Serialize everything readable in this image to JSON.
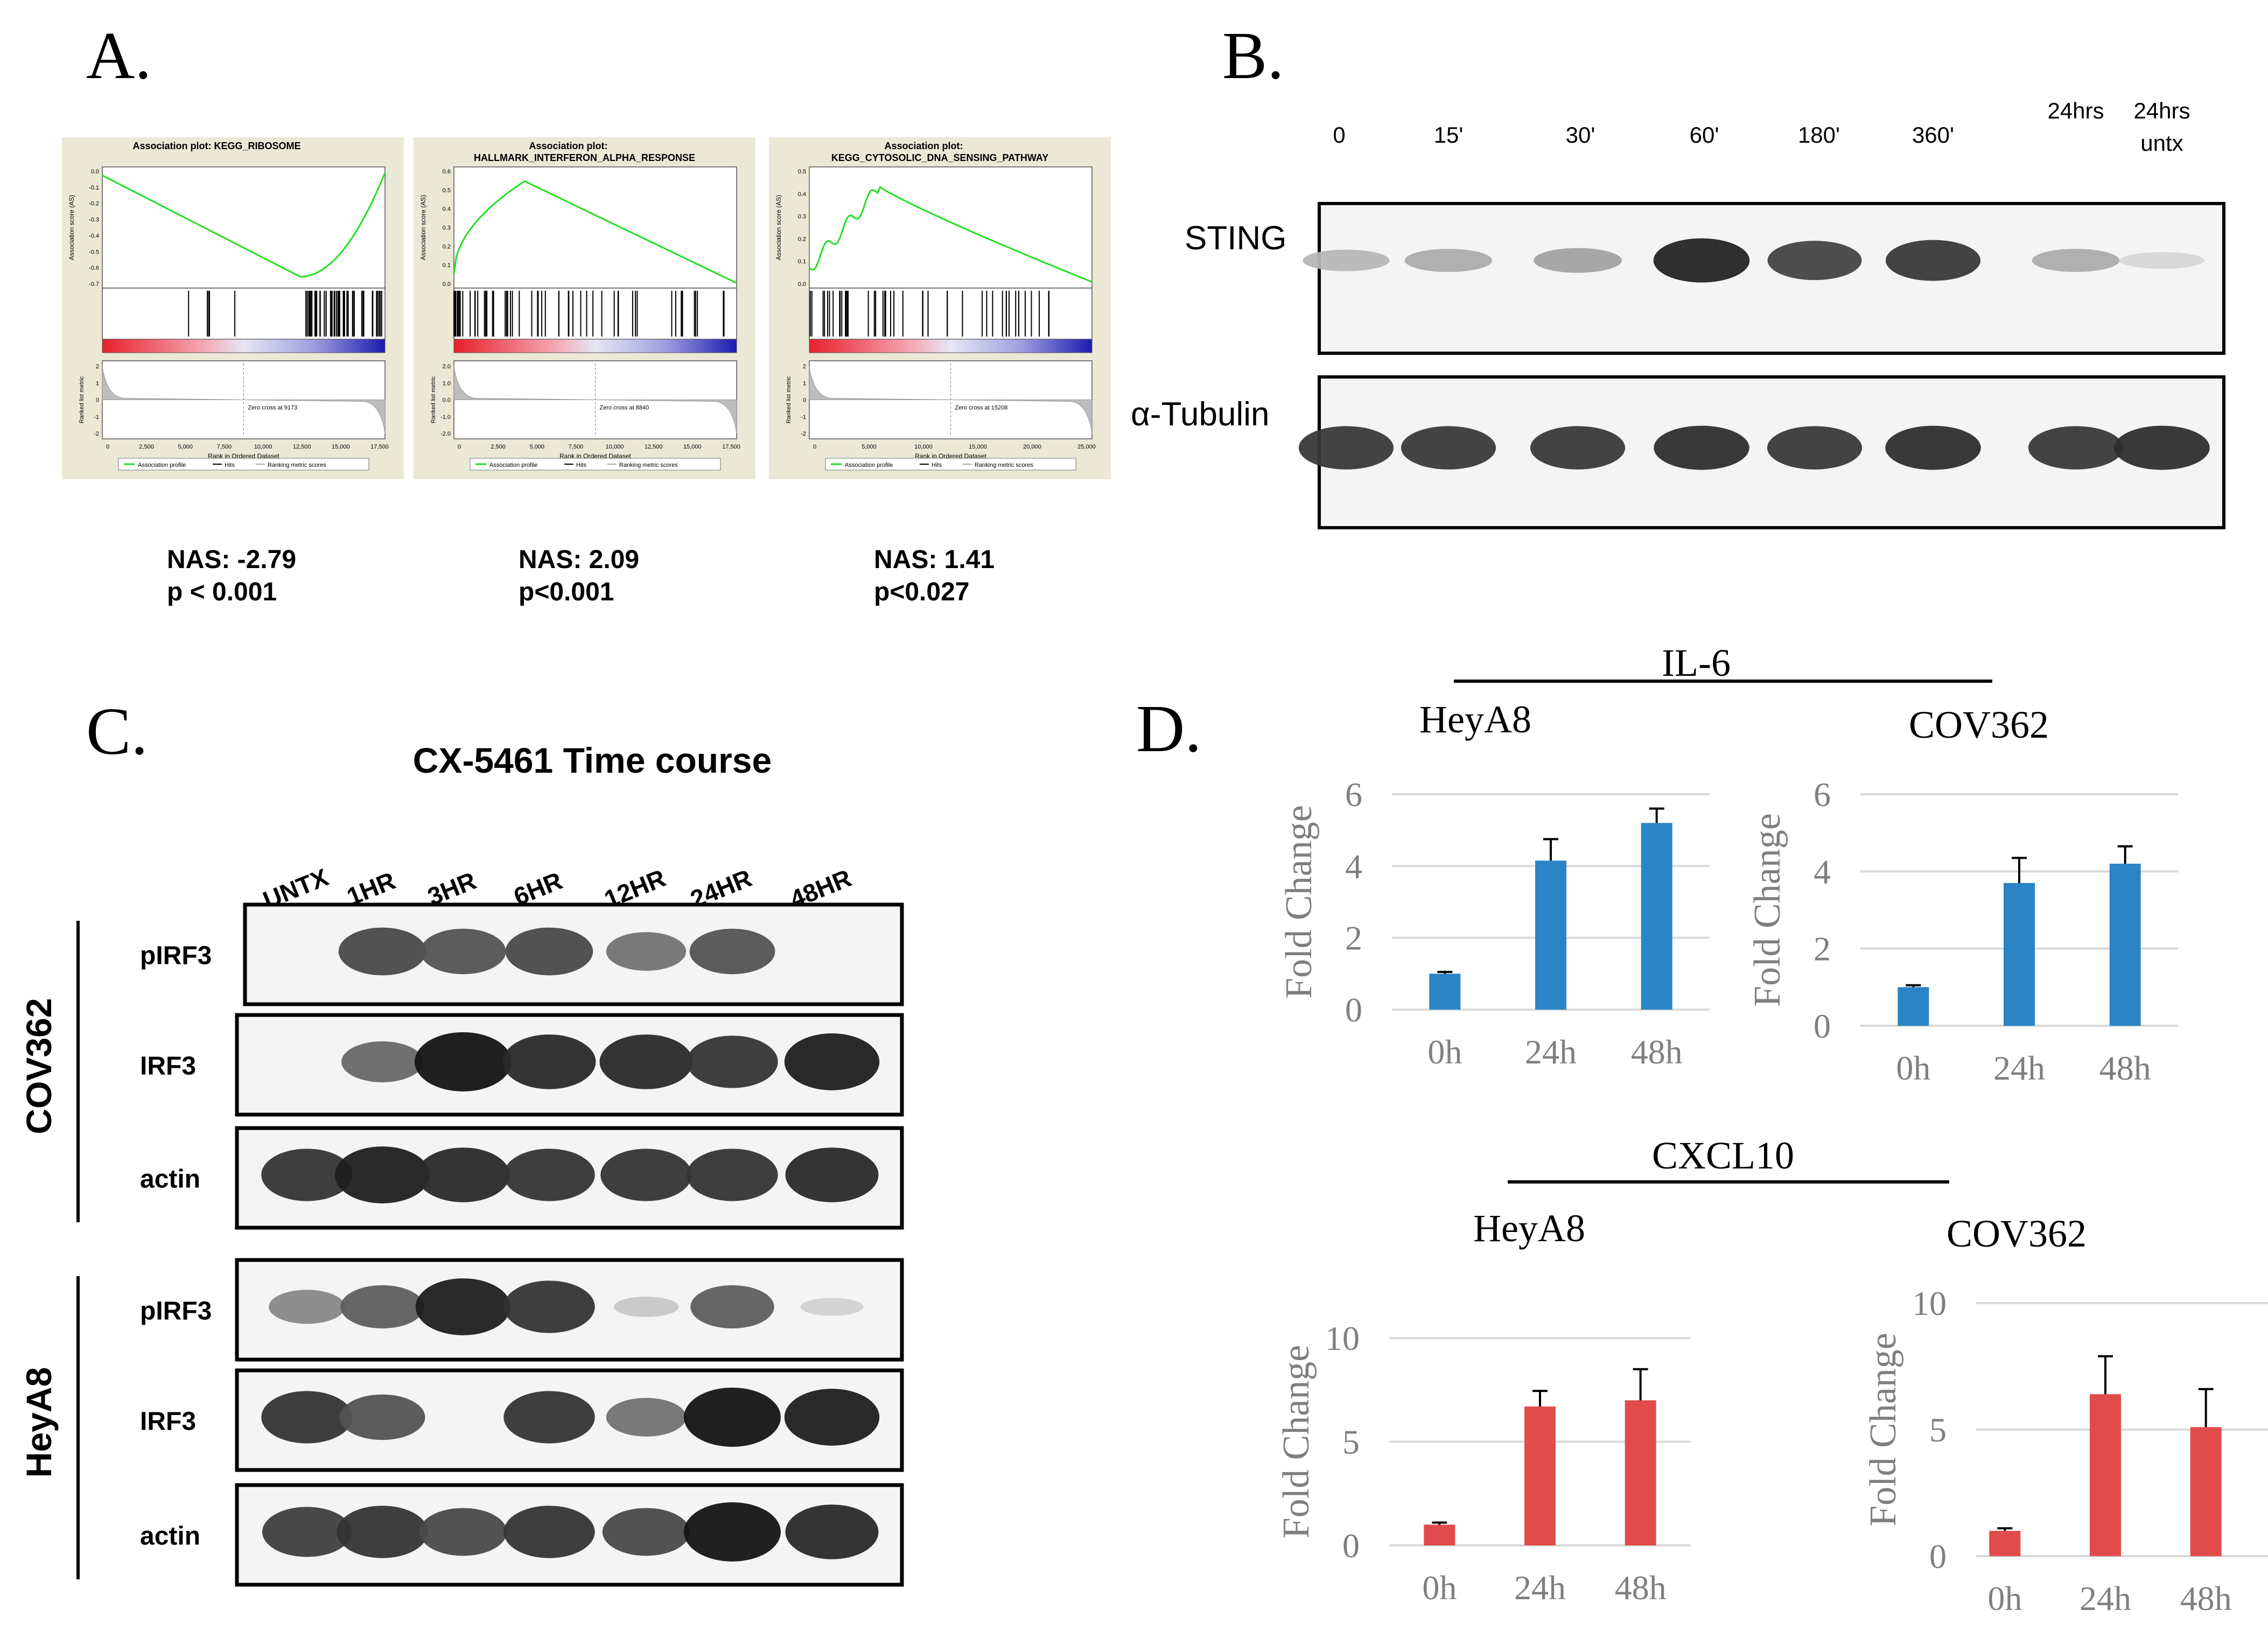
{
  "panel_labels": {
    "a": "A.",
    "b": "B.",
    "c": "C.",
    "d": "D."
  },
  "gsea_plots": [
    {
      "title_line1": "Association plot: KEGG_RIBOSOME",
      "title_line2": "",
      "ylabel": "Association score (AS)",
      "yticks": [
        "0.0",
        "-0.1",
        "-0.2",
        "-0.3",
        "-0.4",
        "-0.5",
        "-0.6",
        "-0.7"
      ],
      "metric_ylabel": "Ranked list metric",
      "metric_yticks": [
        "2",
        "1",
        "0",
        "-1",
        "-2"
      ],
      "zero_cross": "Zero cross at 9173",
      "xlabel": "Rank in Ordered Dataset",
      "xticks": [
        "0",
        "2,500",
        "5,000",
        "7,500",
        "10,000",
        "12,500",
        "15,000",
        "17,500"
      ],
      "legend": [
        "Association profile",
        "Hits",
        "Ranking metric scores"
      ],
      "nas": "NAS: -2.79",
      "p": "p < 0.001"
    },
    {
      "title_line1": "Association plot:",
      "title_line2": "HALLMARK_INTERFERON_ALPHA_RESPONSE",
      "ylabel": "Association score (AS)",
      "yticks": [
        "0.6",
        "0.5",
        "0.4",
        "0.3",
        "0.2",
        "0.1",
        "0.0"
      ],
      "metric_ylabel": "Ranked list metric",
      "metric_yticks": [
        "2.0",
        "1.0",
        "0.0",
        "-1.0",
        "-2.0"
      ],
      "zero_cross": "Zero cross at 8840",
      "xlabel": "Rank in Ordered Dataset",
      "xticks": [
        "0",
        "2,500",
        "5,000",
        "7,500",
        "10,000",
        "12,500",
        "15,000",
        "17,500"
      ],
      "legend": [
        "Association profile",
        "Hits",
        "Ranking metric scores"
      ],
      "nas": "NAS: 2.09",
      "p": "p<0.001"
    },
    {
      "title_line1": "Association plot:",
      "title_line2": "KEGG_CYTOSOLIC_DNA_SENSING_PATHWAY",
      "ylabel": "Association score (AS)",
      "yticks": [
        "0.5",
        "0.4",
        "0.3",
        "0.2",
        "0.1",
        "0.0"
      ],
      "metric_ylabel": "Ranked list metric",
      "metric_yticks": [
        "2",
        "1",
        "0",
        "-1",
        "-2"
      ],
      "zero_cross": "Zero cross at 15208",
      "xlabel": "Rank in Ordered Dataset",
      "xticks": [
        "0",
        "5,000",
        "10,000",
        "15,000",
        "20,000",
        "25,000"
      ],
      "legend": [
        "Association profile",
        "Hits",
        "Ranking metric scores"
      ],
      "nas": "NAS: 1.41",
      "p": "p<0.027"
    }
  ],
  "blot_b": {
    "timepoints": [
      "0",
      "15'",
      "30'",
      "60'",
      "180'",
      "360'",
      "24hrs",
      "24hrs untx"
    ],
    "rows": [
      {
        "label": "STING",
        "intensity": [
          0.25,
          0.3,
          0.35,
          0.95,
          0.8,
          0.85,
          0.3,
          0.1
        ]
      },
      {
        "label": "α-Tubulin",
        "intensity": [
          0.85,
          0.85,
          0.85,
          0.9,
          0.85,
          0.9,
          0.85,
          0.9
        ]
      }
    ]
  },
  "blot_c": {
    "title": "CX-5461 Time course",
    "lanes": [
      "UNTX",
      "1HR",
      "3HR",
      "6HR",
      "12HR",
      "24HR",
      "48HR"
    ],
    "groups": [
      {
        "label": "COV362",
        "rows": [
          {
            "label": "pIRF3",
            "intensity": [
              0.0,
              0.75,
              0.7,
              0.75,
              0.55,
              0.7,
              0.0
            ]
          },
          {
            "label": "IRF3",
            "intensity": [
              0.0,
              0.6,
              1.0,
              0.9,
              0.9,
              0.85,
              0.95
            ]
          },
          {
            "label": "actin",
            "intensity": [
              0.85,
              0.95,
              0.9,
              0.85,
              0.85,
              0.85,
              0.9
            ]
          }
        ]
      },
      {
        "label": "HeyA8",
        "rows": [
          {
            "label": "pIRF3",
            "intensity": [
              0.45,
              0.65,
              0.95,
              0.85,
              0.15,
              0.65,
              0.1
            ]
          },
          {
            "label": "IRF3",
            "intensity": [
              0.85,
              0.7,
              0.0,
              0.85,
              0.55,
              1.0,
              0.95
            ]
          },
          {
            "label": "actin",
            "intensity": [
              0.8,
              0.85,
              0.75,
              0.85,
              0.75,
              1.0,
              0.9
            ]
          }
        ]
      }
    ]
  },
  "panel_d": {
    "group_titles": [
      "IL-6",
      "CXCL10"
    ],
    "colors": {
      "il6": "#2a84c6",
      "cxcl10": "#e04c4c",
      "axis_text": "#7f7f7f",
      "grid": "#d9d9d9"
    }
  },
  "chart_data": [
    {
      "type": "bar",
      "title": "HeyA8",
      "group": "IL-6",
      "categories": [
        "0h",
        "24h",
        "48h"
      ],
      "values": [
        1.0,
        4.15,
        5.2
      ],
      "error": [
        0.05,
        0.6,
        0.4
      ],
      "ylabel": "Fold Change",
      "ylim": [
        0,
        6
      ],
      "yticks": [
        0,
        2,
        4,
        6
      ],
      "grid": true,
      "color": "#2a84c6"
    },
    {
      "type": "bar",
      "title": "COV362",
      "group": "IL-6",
      "categories": [
        "0h",
        "24h",
        "48h"
      ],
      "values": [
        1.0,
        3.7,
        4.2
      ],
      "error": [
        0.05,
        0.65,
        0.45
      ],
      "ylabel": "Fold Change",
      "ylim": [
        0,
        6
      ],
      "yticks": [
        0,
        2,
        4,
        6
      ],
      "grid": true,
      "color": "#2a84c6"
    },
    {
      "type": "bar",
      "title": "HeyA8",
      "group": "CXCL10",
      "categories": [
        "0h",
        "24h",
        "48h"
      ],
      "values": [
        1.0,
        6.7,
        7.0
      ],
      "error": [
        0.1,
        0.75,
        1.5
      ],
      "ylabel": "Fold Change",
      "ylim": [
        0,
        10
      ],
      "yticks": [
        0,
        5,
        10
      ],
      "grid": true,
      "color": "#e04c4c"
    },
    {
      "type": "bar",
      "title": "COV362",
      "group": "CXCL10",
      "categories": [
        "0h",
        "24h",
        "48h"
      ],
      "values": [
        1.0,
        6.4,
        5.1
      ],
      "error": [
        0.1,
        1.5,
        1.5
      ],
      "ylabel": "Fold Change",
      "ylim": [
        0,
        10
      ],
      "yticks": [
        0,
        5,
        10
      ],
      "grid": true,
      "color": "#e04c4c"
    }
  ]
}
